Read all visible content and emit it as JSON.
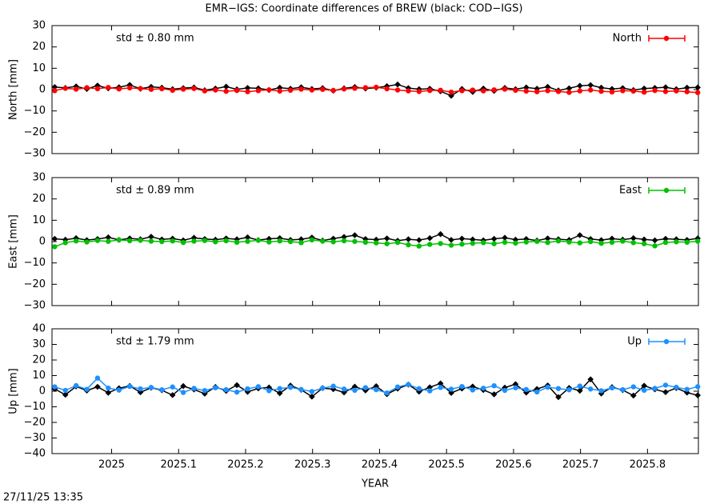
{
  "timestamp": "27/11/25 13:35",
  "chart_data": [
    {
      "type": "scatter",
      "title": "EMR−IGS: Coordinate differences of BREW (black: COD−IGS)",
      "ylabel": "North [mm]",
      "annotation": "std ± 0.80 mm",
      "xlim": [
        2024.911,
        2025.876
      ],
      "xticks": [
        2025,
        2025.1,
        2025.2,
        2025.3,
        2025.4,
        2025.5,
        2025.6,
        2025.7,
        2025.8
      ],
      "ylim": [
        -30,
        30
      ],
      "yticks": [
        {
          "value": -30,
          "label": "−30"
        },
        {
          "value": -20,
          "label": "−20"
        },
        {
          "value": -10,
          "label": "−10"
        },
        0,
        10,
        20,
        30
      ],
      "x": [
        2024.915,
        2024.931,
        2024.947,
        2024.963,
        2024.979,
        2024.995,
        2025.011,
        2025.027,
        2025.043,
        2025.059,
        2025.075,
        2025.091,
        2025.107,
        2025.123,
        2025.139,
        2025.155,
        2025.171,
        2025.187,
        2025.203,
        2025.219,
        2025.235,
        2025.251,
        2025.267,
        2025.283,
        2025.299,
        2025.315,
        2025.331,
        2025.347,
        2025.363,
        2025.379,
        2025.395,
        2025.411,
        2025.427,
        2025.443,
        2025.459,
        2025.475,
        2025.491,
        2025.507,
        2025.523,
        2025.539,
        2025.555,
        2025.571,
        2025.587,
        2025.603,
        2025.619,
        2025.635,
        2025.651,
        2025.667,
        2025.683,
        2025.699,
        2025.715,
        2025.731,
        2025.747,
        2025.763,
        2025.779,
        2025.795,
        2025.811,
        2025.827,
        2025.843,
        2025.859,
        2025.875
      ],
      "series": [
        {
          "color": "#000000",
          "values": [
            1.2,
            0.8,
            1.5,
            0.3,
            1.9,
            0.6,
            1.1,
            2.2,
            0.4,
            1.3,
            0.9,
            0.2,
            0.7,
            1.0,
            -0.3,
            0.5,
            1.4,
            0.1,
            0.8,
            0.6,
            -0.2,
            0.9,
            0.4,
            1.1,
            0.3,
            0.7,
            -0.5,
            0.6,
            1.2,
            0.5,
            0.9,
            1.6,
            2.4,
            0.7,
            0.2,
            0.4,
            -0.8,
            -2.9,
            0.3,
            -1.1,
            0.5,
            -0.6,
            0.8,
            0.2,
            1.0,
            0.4,
            1.3,
            -0.4,
            0.6,
            1.8,
            2.1,
            0.9,
            0.3,
            0.7,
            -0.2,
            0.5,
            0.8,
            1.1,
            0.2,
            0.9,
            1.0
          ]
        },
        {
          "name": "North",
          "color": "#ff0000",
          "values": [
            -0.5,
            0.6,
            0.2,
            0.9,
            0.4,
            1.0,
            0.3,
            0.8,
            0.5,
            0.1,
            0.4,
            -0.3,
            0.2,
            0.5,
            -0.6,
            -0.2,
            -0.8,
            -0.4,
            -1.0,
            -0.5,
            -0.1,
            -0.7,
            -0.3,
            0.2,
            -0.2,
            0.1,
            -0.4,
            0.3,
            0.6,
            0.9,
            1.1,
            0.4,
            -0.2,
            -0.6,
            -0.9,
            -0.4,
            -0.3,
            -1.2,
            -0.5,
            -0.2,
            -0.6,
            -0.1,
            0.2,
            -0.3,
            -0.7,
            -1.0,
            -0.5,
            -0.9,
            -1.3,
            -0.6,
            -0.2,
            -0.8,
            -1.1,
            -0.5,
            -0.7,
            -1.2,
            -0.4,
            -0.9,
            -0.6,
            -1.0,
            -1.4
          ]
        }
      ]
    },
    {
      "type": "scatter",
      "ylabel": "East [mm]",
      "annotation": "std ± 0.89 mm",
      "xlim": [
        2024.911,
        2025.876
      ],
      "xticks": [
        2025,
        2025.1,
        2025.2,
        2025.3,
        2025.4,
        2025.5,
        2025.6,
        2025.7,
        2025.8
      ],
      "ylim": [
        -30,
        30
      ],
      "yticks": [
        {
          "value": -30,
          "label": "−30"
        },
        {
          "value": -20,
          "label": "−20"
        },
        {
          "value": -10,
          "label": "−10"
        },
        0,
        10,
        20,
        30
      ],
      "x": [
        2024.915,
        2024.931,
        2024.947,
        2024.963,
        2024.979,
        2024.995,
        2025.011,
        2025.027,
        2025.043,
        2025.059,
        2025.075,
        2025.091,
        2025.107,
        2025.123,
        2025.139,
        2025.155,
        2025.171,
        2025.187,
        2025.203,
        2025.219,
        2025.235,
        2025.251,
        2025.267,
        2025.283,
        2025.299,
        2025.315,
        2025.331,
        2025.347,
        2025.363,
        2025.379,
        2025.395,
        2025.411,
        2025.427,
        2025.443,
        2025.459,
        2025.475,
        2025.491,
        2025.507,
        2025.523,
        2025.539,
        2025.555,
        2025.571,
        2025.587,
        2025.603,
        2025.619,
        2025.635,
        2025.651,
        2025.667,
        2025.683,
        2025.699,
        2025.715,
        2025.731,
        2025.747,
        2025.763,
        2025.779,
        2025.795,
        2025.811,
        2025.827,
        2025.843,
        2025.859,
        2025.875
      ],
      "series": [
        {
          "color": "#000000",
          "values": [
            1.3,
            0.9,
            1.6,
            0.7,
            1.2,
            2.0,
            0.8,
            1.5,
            1.1,
            2.3,
            1.0,
            1.4,
            0.6,
            1.8,
            1.2,
            0.9,
            1.5,
            1.1,
            2.0,
            0.7,
            1.3,
            1.6,
            0.8,
            1.1,
            1.9,
            0.5,
            1.4,
            2.2,
            3.0,
            1.2,
            0.9,
            1.5,
            0.4,
            1.1,
            0.7,
            1.6,
            3.5,
            0.8,
            1.4,
            1.0,
            0.6,
            1.3,
            1.8,
            0.9,
            1.2,
            0.5,
            1.5,
            1.1,
            0.8,
            3.0,
            1.2,
            0.7,
            1.4,
            0.9,
            1.6,
            1.0,
            0.6,
            1.3,
            1.1,
            0.8,
            1.5
          ]
        },
        {
          "name": "East",
          "color": "#00c000",
          "values": [
            -2.4,
            -0.5,
            0.3,
            -0.2,
            0.5,
            0.1,
            0.8,
            0.4,
            0.6,
            0.2,
            0.0,
            0.3,
            -0.4,
            0.2,
            0.5,
            -0.1,
            0.4,
            -0.3,
            0.1,
            0.6,
            -0.2,
            0.3,
            0.0,
            -0.5,
            0.8,
            0.2,
            -0.1,
            0.4,
            0.1,
            -0.3,
            -0.6,
            -1.0,
            -0.4,
            -1.5,
            -2.1,
            -1.3,
            -0.9,
            -1.7,
            -1.2,
            -0.8,
            -0.5,
            -1.0,
            -0.3,
            -0.7,
            -0.2,
            0.1,
            -0.4,
            0.3,
            -0.2,
            -0.6,
            0.0,
            -0.8,
            -0.3,
            0.2,
            -0.5,
            -1.0,
            -2.0,
            -0.4,
            -0.1,
            -0.3,
            0.2
          ]
        }
      ]
    },
    {
      "type": "scatter",
      "ylabel": "Up [mm]",
      "annotation": "std ± 1.79 mm",
      "xlabel": "YEAR",
      "xlim": [
        2024.911,
        2025.876
      ],
      "xticks": [
        2025,
        2025.1,
        2025.2,
        2025.3,
        2025.4,
        2025.5,
        2025.6,
        2025.7,
        2025.8
      ],
      "ylim": [
        -40,
        40
      ],
      "yticks": [
        {
          "value": -40,
          "label": "−40"
        },
        {
          "value": -30,
          "label": "−30"
        },
        {
          "value": -20,
          "label": "−20"
        },
        {
          "value": -10,
          "label": "−10"
        },
        0,
        10,
        20,
        30,
        40
      ],
      "x": [
        2024.915,
        2024.931,
        2024.947,
        2024.963,
        2024.979,
        2024.995,
        2025.011,
        2025.027,
        2025.043,
        2025.059,
        2025.075,
        2025.091,
        2025.107,
        2025.123,
        2025.139,
        2025.155,
        2025.171,
        2025.187,
        2025.203,
        2025.219,
        2025.235,
        2025.251,
        2025.267,
        2025.283,
        2025.299,
        2025.315,
        2025.331,
        2025.347,
        2025.363,
        2025.379,
        2025.395,
        2025.411,
        2025.427,
        2025.443,
        2025.459,
        2025.475,
        2025.491,
        2025.507,
        2025.523,
        2025.539,
        2025.555,
        2025.571,
        2025.587,
        2025.603,
        2025.619,
        2025.635,
        2025.651,
        2025.667,
        2025.683,
        2025.699,
        2025.715,
        2025.731,
        2025.747,
        2025.763,
        2025.779,
        2025.795,
        2025.811,
        2025.827,
        2025.843,
        2025.859,
        2025.875
      ],
      "series": [
        {
          "color": "#000000",
          "values": [
            1.5,
            -2.3,
            3.1,
            0.4,
            2.8,
            -1.0,
            1.9,
            3.4,
            -0.7,
            2.2,
            0.6,
            -2.5,
            3.3,
            1.1,
            -1.6,
            2.7,
            0.2,
            3.9,
            -0.4,
            1.8,
            2.4,
            -1.3,
            3.6,
            0.9,
            -3.5,
            2.0,
            1.3,
            -0.8,
            2.9,
            0.5,
            3.2,
            -1.9,
            1.6,
            4.2,
            -0.3,
            2.5,
            5.0,
            -1.1,
            1.7,
            3.0,
            0.8,
            -2.0,
            2.3,
            4.5,
            -0.9,
            1.4,
            3.7,
            -3.8,
            2.1,
            0.3,
            7.6,
            -1.5,
            2.6,
            0.7,
            -2.8,
            3.5,
            1.2,
            -0.6,
            2.0,
            -0.9,
            -2.6
          ]
        },
        {
          "name": "Up",
          "color": "#1e90ff",
          "values": [
            2.8,
            0.5,
            3.6,
            1.2,
            8.4,
            2.0,
            0.7,
            3.1,
            1.5,
            2.4,
            0.9,
            2.7,
            -0.8,
            1.8,
            0.4,
            2.2,
            1.0,
            -0.6,
            1.5,
            2.9,
            0.3,
            1.7,
            2.5,
            1.1,
            -0.2,
            2.0,
            3.2,
            1.4,
            0.6,
            2.3,
            1.0,
            -1.1,
            2.7,
            4.3,
            1.6,
            0.2,
            2.4,
            1.3,
            3.0,
            0.8,
            1.9,
            3.5,
            0.5,
            2.2,
            1.1,
            -0.5,
            2.6,
            1.7,
            0.9,
            3.3,
            1.4,
            0.3,
            2.1,
            1.0,
            2.8,
            0.6,
            1.8,
            3.9,
            2.5,
            1.2,
            2.9
          ]
        }
      ]
    }
  ]
}
